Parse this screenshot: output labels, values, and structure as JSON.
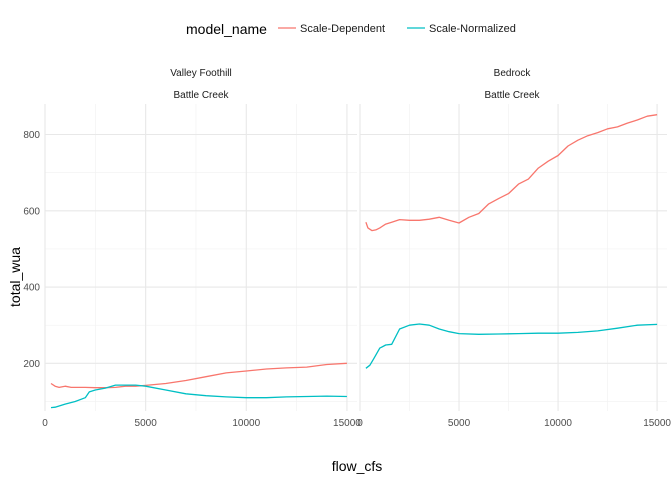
{
  "chart_data": {
    "type": "line",
    "legend": {
      "title": "model_name",
      "position": "top",
      "entries": [
        {
          "label": "Scale-Dependent",
          "color": "#F8766D"
        },
        {
          "label": "Scale-Normalized",
          "color": "#00BFC4"
        }
      ]
    },
    "xlabel": "flow_cfs",
    "ylabel": "total_wua",
    "xlim": [
      0,
      15500
    ],
    "ylim": [
      75,
      880
    ],
    "x_ticks": [
      0,
      5000,
      10000,
      15000
    ],
    "x_tick_labels": [
      "0",
      "5000",
      "10000",
      "15000"
    ],
    "y_ticks": [
      200,
      400,
      600,
      800
    ],
    "y_tick_labels": [
      "200",
      "400",
      "600",
      "800"
    ],
    "grid": true,
    "panels": [
      {
        "strip": [
          "Valley Foothill",
          "Battle Creek"
        ],
        "series": [
          {
            "name": "Scale-Dependent",
            "color": "#F8766D",
            "points": [
              [
                300,
                147
              ],
              [
                500,
                140
              ],
              [
                700,
                137
              ],
              [
                1000,
                140
              ],
              [
                1300,
                137
              ],
              [
                2000,
                137
              ],
              [
                2500,
                136
              ],
              [
                3000,
                136
              ],
              [
                3500,
                137
              ],
              [
                4000,
                140
              ],
              [
                4500,
                140
              ],
              [
                5000,
                142
              ],
              [
                6000,
                147
              ],
              [
                7000,
                155
              ],
              [
                8000,
                165
              ],
              [
                9000,
                175
              ],
              [
                10000,
                180
              ],
              [
                11000,
                185
              ],
              [
                12000,
                188
              ],
              [
                13000,
                190
              ],
              [
                14000,
                197
              ],
              [
                15000,
                200
              ]
            ]
          },
          {
            "name": "Scale-Normalized",
            "color": "#00BFC4",
            "points": [
              [
                300,
                84
              ],
              [
                500,
                85
              ],
              [
                700,
                88
              ],
              [
                1000,
                93
              ],
              [
                1500,
                100
              ],
              [
                2000,
                110
              ],
              [
                2200,
                125
              ],
              [
                2500,
                130
              ],
              [
                3000,
                135
              ],
              [
                3500,
                143
              ],
              [
                4000,
                143
              ],
              [
                4500,
                143
              ],
              [
                5000,
                140
              ],
              [
                6000,
                130
              ],
              [
                7000,
                120
              ],
              [
                8000,
                115
              ],
              [
                9000,
                112
              ],
              [
                10000,
                110
              ],
              [
                11000,
                110
              ],
              [
                12000,
                112
              ],
              [
                13000,
                113
              ],
              [
                14000,
                114
              ],
              [
                15000,
                113
              ]
            ]
          }
        ]
      },
      {
        "strip": [
          "Bedrock",
          "Battle Creek"
        ],
        "series": [
          {
            "name": "Scale-Dependent",
            "color": "#F8766D",
            "points": [
              [
                300,
                570
              ],
              [
                400,
                555
              ],
              [
                600,
                548
              ],
              [
                800,
                550
              ],
              [
                1000,
                555
              ],
              [
                1300,
                565
              ],
              [
                1600,
                570
              ],
              [
                2000,
                577
              ],
              [
                2500,
                575
              ],
              [
                3000,
                575
              ],
              [
                3500,
                578
              ],
              [
                4000,
                583
              ],
              [
                4500,
                575
              ],
              [
                5000,
                568
              ],
              [
                5500,
                583
              ],
              [
                6000,
                593
              ],
              [
                6500,
                618
              ],
              [
                7000,
                632
              ],
              [
                7500,
                645
              ],
              [
                8000,
                670
              ],
              [
                8500,
                683
              ],
              [
                9000,
                712
              ],
              [
                9500,
                730
              ],
              [
                10000,
                745
              ],
              [
                10500,
                770
              ],
              [
                11000,
                785
              ],
              [
                11500,
                797
              ],
              [
                12000,
                805
              ],
              [
                12500,
                815
              ],
              [
                13000,
                820
              ],
              [
                13500,
                830
              ],
              [
                14000,
                838
              ],
              [
                14500,
                848
              ],
              [
                15000,
                852
              ]
            ]
          },
          {
            "name": "Scale-Normalized",
            "color": "#00BFC4",
            "points": [
              [
                300,
                187
              ],
              [
                500,
                195
              ],
              [
                700,
                213
              ],
              [
                1000,
                240
              ],
              [
                1300,
                248
              ],
              [
                1600,
                250
              ],
              [
                2000,
                290
              ],
              [
                2500,
                300
              ],
              [
                3000,
                303
              ],
              [
                3500,
                300
              ],
              [
                4000,
                290
              ],
              [
                4500,
                283
              ],
              [
                5000,
                278
              ],
              [
                6000,
                276
              ],
              [
                7000,
                277
              ],
              [
                8000,
                278
              ],
              [
                9000,
                279
              ],
              [
                10000,
                279
              ],
              [
                11000,
                281
              ],
              [
                12000,
                285
              ],
              [
                13000,
                292
              ],
              [
                14000,
                300
              ],
              [
                15000,
                302
              ]
            ]
          }
        ]
      }
    ]
  }
}
